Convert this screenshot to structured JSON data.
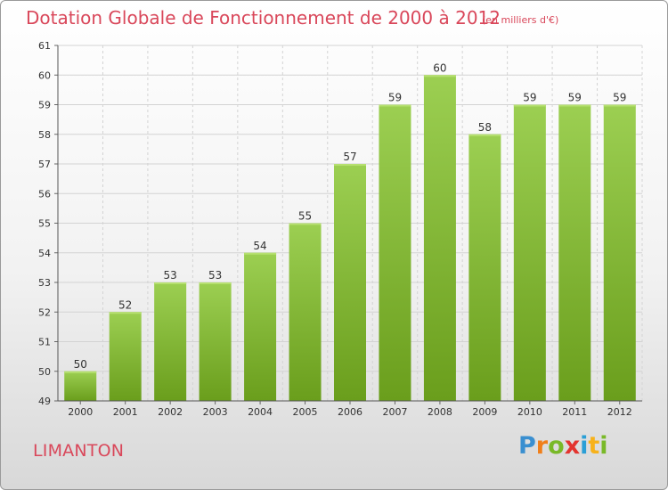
{
  "chart_data": {
    "type": "bar",
    "title": "Dotation Globale de Fonctionnement de 2000 à 2012",
    "subtitle": "(en milliers d'€)",
    "categories": [
      "2000",
      "2001",
      "2002",
      "2003",
      "2004",
      "2005",
      "2006",
      "2007",
      "2008",
      "2009",
      "2010",
      "2011",
      "2012"
    ],
    "values": [
      50,
      52,
      53,
      53,
      54,
      55,
      57,
      59,
      60,
      58,
      59,
      59,
      59
    ],
    "ylim": [
      49,
      61
    ],
    "yticks": [
      49,
      50,
      51,
      52,
      53,
      54,
      55,
      56,
      57,
      58,
      59,
      60,
      61
    ],
    "xlabel": "",
    "ylabel": "",
    "grid": true,
    "colors": {
      "bar_light": "#9ccf52",
      "bar_dark": "#6a9e1c",
      "grid": "#d3d3d3",
      "text": "#333333",
      "title": "#d9475a"
    }
  },
  "footer": {
    "commune": "LIMANTON",
    "logo_letters": [
      "P",
      "r",
      "o",
      "x",
      "i",
      "t",
      "i"
    ],
    "logo_colors": [
      "#3a8fd0",
      "#f07f1a",
      "#79b928",
      "#e3342f",
      "#2a9fd6",
      "#f7b21b",
      "#79b928"
    ]
  }
}
